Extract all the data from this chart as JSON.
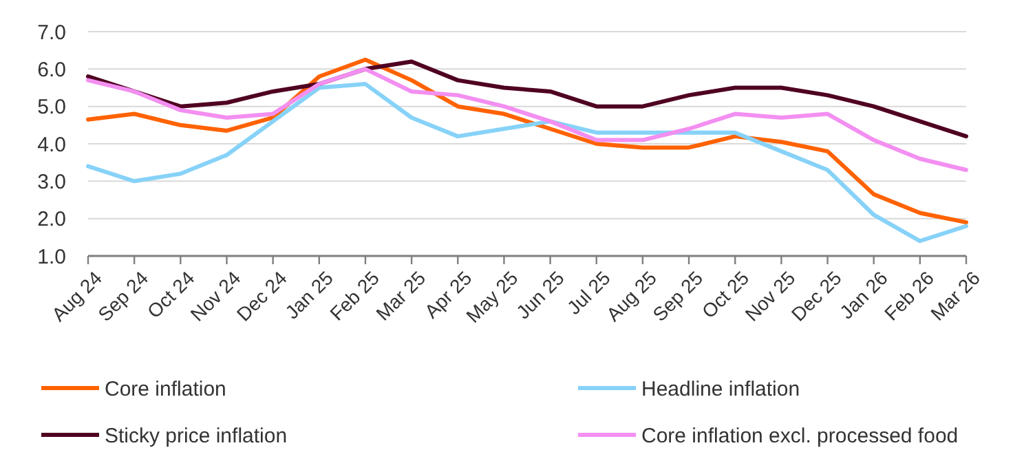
{
  "chart_data": {
    "type": "line",
    "categories": [
      "Aug 24",
      "Sep 24",
      "Oct 24",
      "Nov 24",
      "Dec 24",
      "Jan 25",
      "Feb 25",
      "Mar 25",
      "Apr 25",
      "May 25",
      "Jun 25",
      "Jul 25",
      "Aug 25",
      "Sep 25",
      "Oct 25",
      "Nov 25",
      "Dec 25",
      "Jan 26",
      "Feb 26",
      "Mar 26"
    ],
    "series": [
      {
        "name": "Core inflation",
        "color": "#ff6200",
        "values": [
          4.65,
          4.8,
          4.5,
          4.35,
          4.7,
          5.8,
          6.25,
          5.7,
          5.0,
          4.8,
          4.4,
          4.0,
          3.9,
          3.9,
          4.2,
          4.05,
          3.8,
          2.65,
          2.15,
          1.9
        ]
      },
      {
        "name": "Headline inflation",
        "color": "#87d2f8",
        "values": [
          3.4,
          3.0,
          3.2,
          3.7,
          4.6,
          5.5,
          5.6,
          4.7,
          4.2,
          4.4,
          4.6,
          4.3,
          4.3,
          4.3,
          4.3,
          3.8,
          3.3,
          2.1,
          1.4,
          1.8
        ]
      },
      {
        "name": "Sticky price inflation",
        "color": "#4f0021",
        "values": [
          5.8,
          5.4,
          5.0,
          5.1,
          5.4,
          5.6,
          6.0,
          6.2,
          5.7,
          5.5,
          5.4,
          5.0,
          5.0,
          5.3,
          5.5,
          5.5,
          5.3,
          5.0,
          4.6,
          4.2
        ]
      },
      {
        "name": "Core inflation excl. processed food",
        "color": "#f38ff1",
        "values": [
          5.7,
          5.4,
          4.9,
          4.7,
          4.8,
          5.6,
          6.0,
          5.4,
          5.3,
          5.0,
          4.6,
          4.1,
          4.1,
          4.4,
          4.8,
          4.7,
          4.8,
          4.1,
          3.6,
          3.3
        ]
      }
    ],
    "ylim": [
      1,
      7
    ],
    "yticks": [
      {
        "value": 1,
        "label": "1.0"
      },
      {
        "value": 2,
        "label": "2.0"
      },
      {
        "value": 3,
        "label": "3.0"
      },
      {
        "value": 4,
        "label": "4.0"
      },
      {
        "value": 5,
        "label": "5.0"
      },
      {
        "value": 6,
        "label": "6.0"
      },
      {
        "value": 7,
        "label": "7.0"
      }
    ],
    "grid": "y",
    "legend": "bottom",
    "marker": "none",
    "line_style": "solid"
  }
}
